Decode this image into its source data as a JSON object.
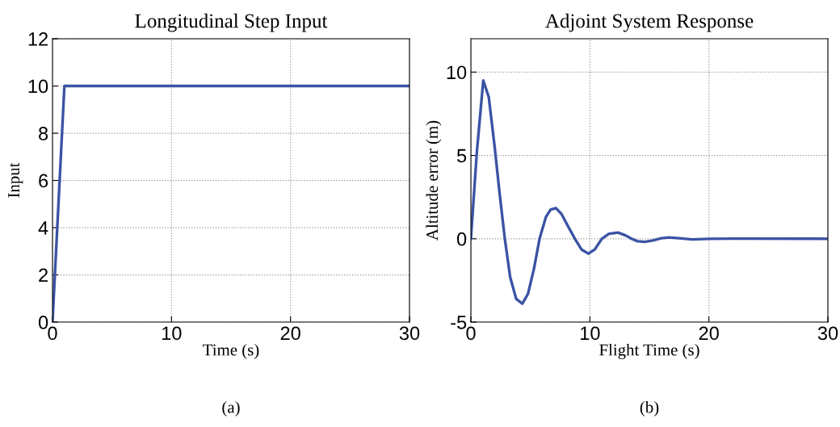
{
  "chart_data": [
    {
      "type": "line",
      "title": "Longitudinal Step Input",
      "xlabel": "Time (s)",
      "ylabel": "Input",
      "x": [
        0,
        1,
        30
      ],
      "series": [
        {
          "color": "#3a53a4",
          "values": [
            0,
            10,
            10
          ]
        }
      ],
      "xlim": [
        0,
        30
      ],
      "xticks": [
        0,
        10,
        20,
        30
      ],
      "ylim": [
        0,
        12
      ],
      "yticks": [
        0,
        2,
        4,
        6,
        8,
        10,
        12
      ],
      "grid": true,
      "legend": false,
      "line_style": "solid",
      "marker": "none",
      "annotations": [
        "(a)"
      ]
    },
    {
      "type": "line",
      "title": "Adjoint System Response",
      "xlabel": "Flight Time (s)",
      "ylabel": "Altitude error (m)",
      "x": [
        0,
        0.5,
        1.04,
        1.5,
        2.0,
        2.4,
        2.85,
        3.3,
        3.8,
        4.32,
        4.8,
        5.3,
        5.77,
        6.3,
        6.7,
        7.15,
        7.6,
        8.2,
        8.74,
        9.3,
        9.87,
        10.4,
        11.0,
        11.6,
        12.36,
        13.0,
        13.5,
        14.0,
        14.6,
        15.3,
        16.0,
        16.65,
        17.5,
        18.6,
        20,
        22,
        30
      ],
      "series": [
        {
          "color": "#3a53a4",
          "values": [
            0,
            5.2,
            9.5,
            8.5,
            5.5,
            2.8,
            0,
            -2.3,
            -3.6,
            -3.9,
            -3.3,
            -1.8,
            0,
            1.3,
            1.75,
            1.84,
            1.5,
            0.7,
            0,
            -0.65,
            -0.89,
            -0.65,
            0,
            0.3,
            0.37,
            0.2,
            0,
            -0.15,
            -0.19,
            -0.1,
            0.03,
            0.08,
            0.03,
            -0.04,
            0,
            0.01,
            0
          ]
        }
      ],
      "xlim": [
        0,
        30
      ],
      "xticks": [
        0,
        10,
        20,
        30
      ],
      "ylim": [
        -5,
        12
      ],
      "yticks": [
        {
          "value": -5,
          "label": "-5"
        },
        0,
        5,
        10
      ],
      "grid": true,
      "legend": false,
      "line_style": "solid",
      "marker": "none",
      "annotations": [
        "(b)"
      ]
    }
  ]
}
